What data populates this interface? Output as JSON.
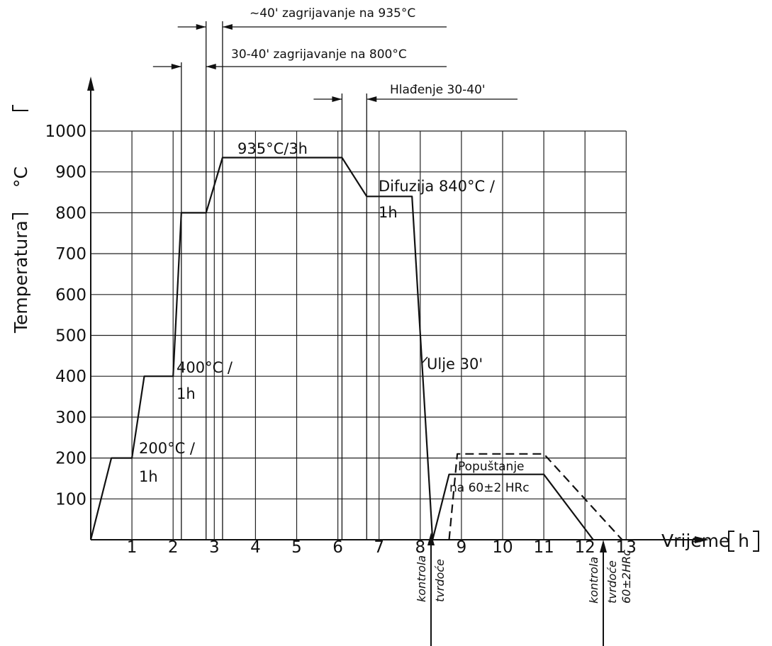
{
  "chart_data": {
    "type": "line",
    "xlabel": "Vrijeme",
    "xunit": "h",
    "ylabel": "Temperatura",
    "yunit": "°C",
    "xlim": [
      0,
      13
    ],
    "ylim": [
      0,
      1000
    ],
    "x_ticks": [
      "1",
      "2",
      "3",
      "4",
      "5",
      "6",
      "7",
      "8",
      "9",
      "10",
      "11",
      "12",
      "13"
    ],
    "y_ticks": [
      "100",
      "200",
      "300",
      "400",
      "500",
      "600",
      "700",
      "800",
      "900",
      "1000"
    ],
    "grid": true,
    "series": [
      {
        "style": "solid",
        "points": [
          [
            0,
            0
          ],
          [
            0.5,
            200
          ],
          [
            1,
            200
          ],
          [
            1.3,
            400
          ],
          [
            2,
            400
          ],
          [
            2.2,
            800
          ],
          [
            2.8,
            800
          ],
          [
            3.2,
            935
          ],
          [
            6.1,
            935
          ],
          [
            6.7,
            840
          ],
          [
            7.8,
            840
          ],
          [
            8.3,
            0
          ]
        ]
      },
      {
        "style": "solid",
        "points": [
          [
            8.3,
            0
          ],
          [
            8.7,
            160
          ],
          [
            11,
            160
          ],
          [
            12.2,
            0
          ]
        ]
      },
      {
        "style": "dashed",
        "points": [
          [
            8.7,
            0
          ],
          [
            8.9,
            210
          ],
          [
            11,
            210
          ],
          [
            12.9,
            0
          ]
        ]
      }
    ],
    "annotations": {
      "peak": "935°C/3h",
      "diffusion_1": "Difuzija 840°C /",
      "diffusion_2": "1h",
      "step400_1": "400°C /",
      "step400_2": "1h",
      "step200_1": "200°C /",
      "step200_2": "1h",
      "oil": "Ulje 30'",
      "temper_1": "Popuštanje",
      "temper_2": "na 60±2 HRc",
      "heat935": "~40' zagrijavanje na 935°C",
      "heat800": "30-40' zagrijavanje na 800°C",
      "cooling": "Hlađenje 30-40'",
      "control1_a": "kontrola",
      "control1_b": "tvrdoće",
      "control2_a": "kontrola",
      "control2_b": "tvrdoće",
      "control2_c": "60±2HRc"
    }
  }
}
